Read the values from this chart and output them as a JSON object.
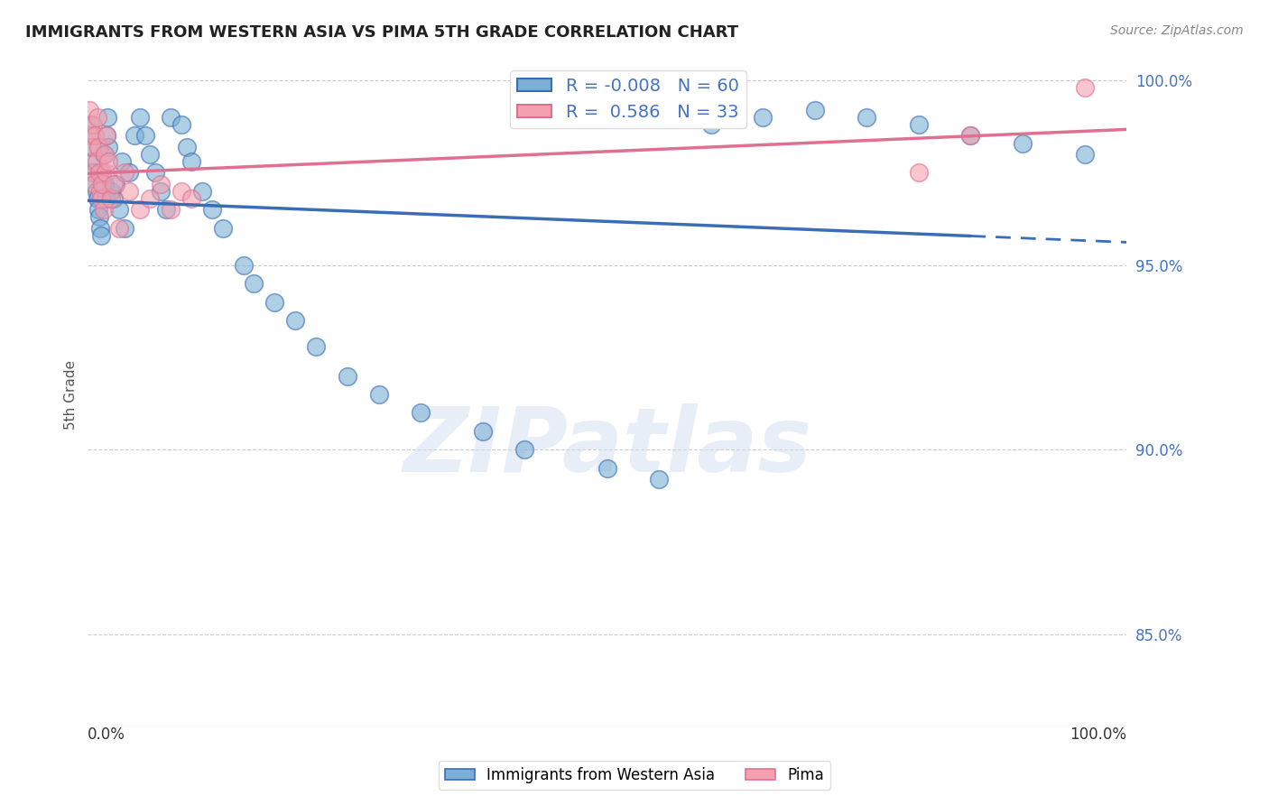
{
  "title": "IMMIGRANTS FROM WESTERN ASIA VS PIMA 5TH GRADE CORRELATION CHART",
  "source": "Source: ZipAtlas.com",
  "ylabel": "5th Grade",
  "ylabel_right_vals": [
    1.0,
    0.95,
    0.9,
    0.85
  ],
  "legend_label_blue": "Immigrants from Western Asia",
  "legend_label_pink": "Pima",
  "R_blue": -0.008,
  "N_blue": 60,
  "R_pink": 0.586,
  "N_pink": 33,
  "blue_color": "#7bafd4",
  "pink_color": "#f4a0b0",
  "trend_blue": "#3a6db5",
  "trend_pink": "#e07090",
  "blue_scatter_x": [
    0.002,
    0.003,
    0.004,
    0.005,
    0.006,
    0.007,
    0.008,
    0.009,
    0.01,
    0.011,
    0.012,
    0.013,
    0.014,
    0.015,
    0.016,
    0.017,
    0.018,
    0.019,
    0.02,
    0.022,
    0.025,
    0.027,
    0.03,
    0.033,
    0.035,
    0.04,
    0.045,
    0.05,
    0.055,
    0.06,
    0.065,
    0.07,
    0.075,
    0.08,
    0.09,
    0.095,
    0.1,
    0.11,
    0.12,
    0.13,
    0.15,
    0.16,
    0.18,
    0.2,
    0.22,
    0.25,
    0.28,
    0.32,
    0.38,
    0.42,
    0.5,
    0.55,
    0.6,
    0.65,
    0.7,
    0.75,
    0.8,
    0.85,
    0.9,
    0.96
  ],
  "blue_scatter_y": [
    0.988,
    0.985,
    0.982,
    0.978,
    0.975,
    0.972,
    0.97,
    0.968,
    0.965,
    0.963,
    0.96,
    0.958,
    0.975,
    0.98,
    0.972,
    0.968,
    0.985,
    0.99,
    0.982,
    0.97,
    0.968,
    0.972,
    0.965,
    0.978,
    0.96,
    0.975,
    0.985,
    0.99,
    0.985,
    0.98,
    0.975,
    0.97,
    0.965,
    0.99,
    0.988,
    0.982,
    0.978,
    0.97,
    0.965,
    0.96,
    0.95,
    0.945,
    0.94,
    0.935,
    0.928,
    0.92,
    0.915,
    0.91,
    0.905,
    0.9,
    0.895,
    0.892,
    0.988,
    0.99,
    0.992,
    0.99,
    0.988,
    0.985,
    0.983,
    0.98
  ],
  "pink_scatter_x": [
    0.001,
    0.002,
    0.003,
    0.004,
    0.005,
    0.006,
    0.007,
    0.008,
    0.009,
    0.01,
    0.011,
    0.012,
    0.013,
    0.014,
    0.015,
    0.016,
    0.017,
    0.018,
    0.02,
    0.022,
    0.025,
    0.03,
    0.035,
    0.04,
    0.05,
    0.06,
    0.07,
    0.08,
    0.09,
    0.1,
    0.8,
    0.85,
    0.96
  ],
  "pink_scatter_y": [
    0.992,
    0.985,
    0.982,
    0.975,
    0.988,
    0.972,
    0.985,
    0.978,
    0.99,
    0.982,
    0.975,
    0.97,
    0.968,
    0.972,
    0.965,
    0.98,
    0.975,
    0.985,
    0.978,
    0.968,
    0.972,
    0.96,
    0.975,
    0.97,
    0.965,
    0.968,
    0.972,
    0.965,
    0.97,
    0.968,
    0.975,
    0.985,
    0.998
  ],
  "xlim": [
    0.0,
    1.0
  ],
  "ylim": [
    0.825,
    1.005
  ],
  "background_color": "#ffffff",
  "watermark": "ZIPatlas",
  "watermark_color": "#d0dff0"
}
